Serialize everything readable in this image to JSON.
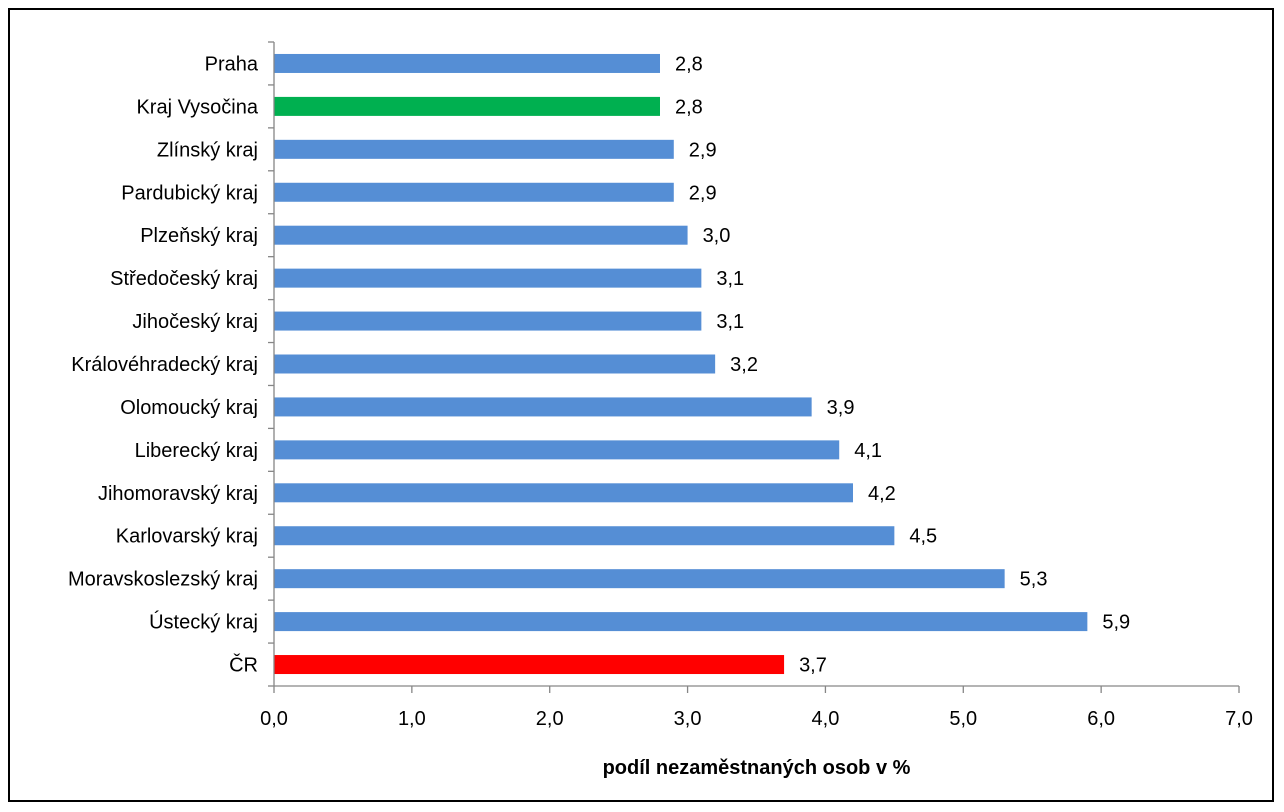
{
  "chart_data": {
    "type": "bar",
    "orientation": "horizontal",
    "categories": [
      "Praha",
      "Kraj Vysočina",
      "Zlínský kraj",
      "Pardubický kraj",
      "Plzeňský kraj",
      "Středočeský kraj",
      "Jihočeský kraj",
      "Královéhradecký kraj",
      "Olomoucký kraj",
      "Liberecký kraj",
      "Jihomoravský kraj",
      "Karlovarský kraj",
      "Moravskoslezský kraj",
      "Ústecký kraj",
      "ČR"
    ],
    "values": [
      2.8,
      2.8,
      2.9,
      2.9,
      3.0,
      3.1,
      3.1,
      3.2,
      3.9,
      4.1,
      4.2,
      4.5,
      5.3,
      5.9,
      3.7
    ],
    "value_labels": [
      "2,8",
      "2,8",
      "2,9",
      "2,9",
      "3,0",
      "3,1",
      "3,1",
      "3,2",
      "3,9",
      "4,1",
      "4,2",
      "4,5",
      "5,3",
      "5,9",
      "3,7"
    ],
    "bar_colors": [
      "#558ED5",
      "#00B050",
      "#558ED5",
      "#558ED5",
      "#558ED5",
      "#558ED5",
      "#558ED5",
      "#558ED5",
      "#558ED5",
      "#558ED5",
      "#558ED5",
      "#558ED5",
      "#558ED5",
      "#558ED5",
      "#FF0000"
    ],
    "xlabel": "podíl nezaměstnaných osob v %",
    "ylabel": "",
    "title": "",
    "xlim": [
      0,
      7
    ],
    "x_ticks": [
      0,
      1,
      2,
      3,
      4,
      5,
      6,
      7
    ],
    "x_tick_labels": [
      "0,0",
      "1,0",
      "2,0",
      "3,0",
      "4,0",
      "5,0",
      "6,0",
      "7,0"
    ],
    "grid": false,
    "legend": "none"
  }
}
